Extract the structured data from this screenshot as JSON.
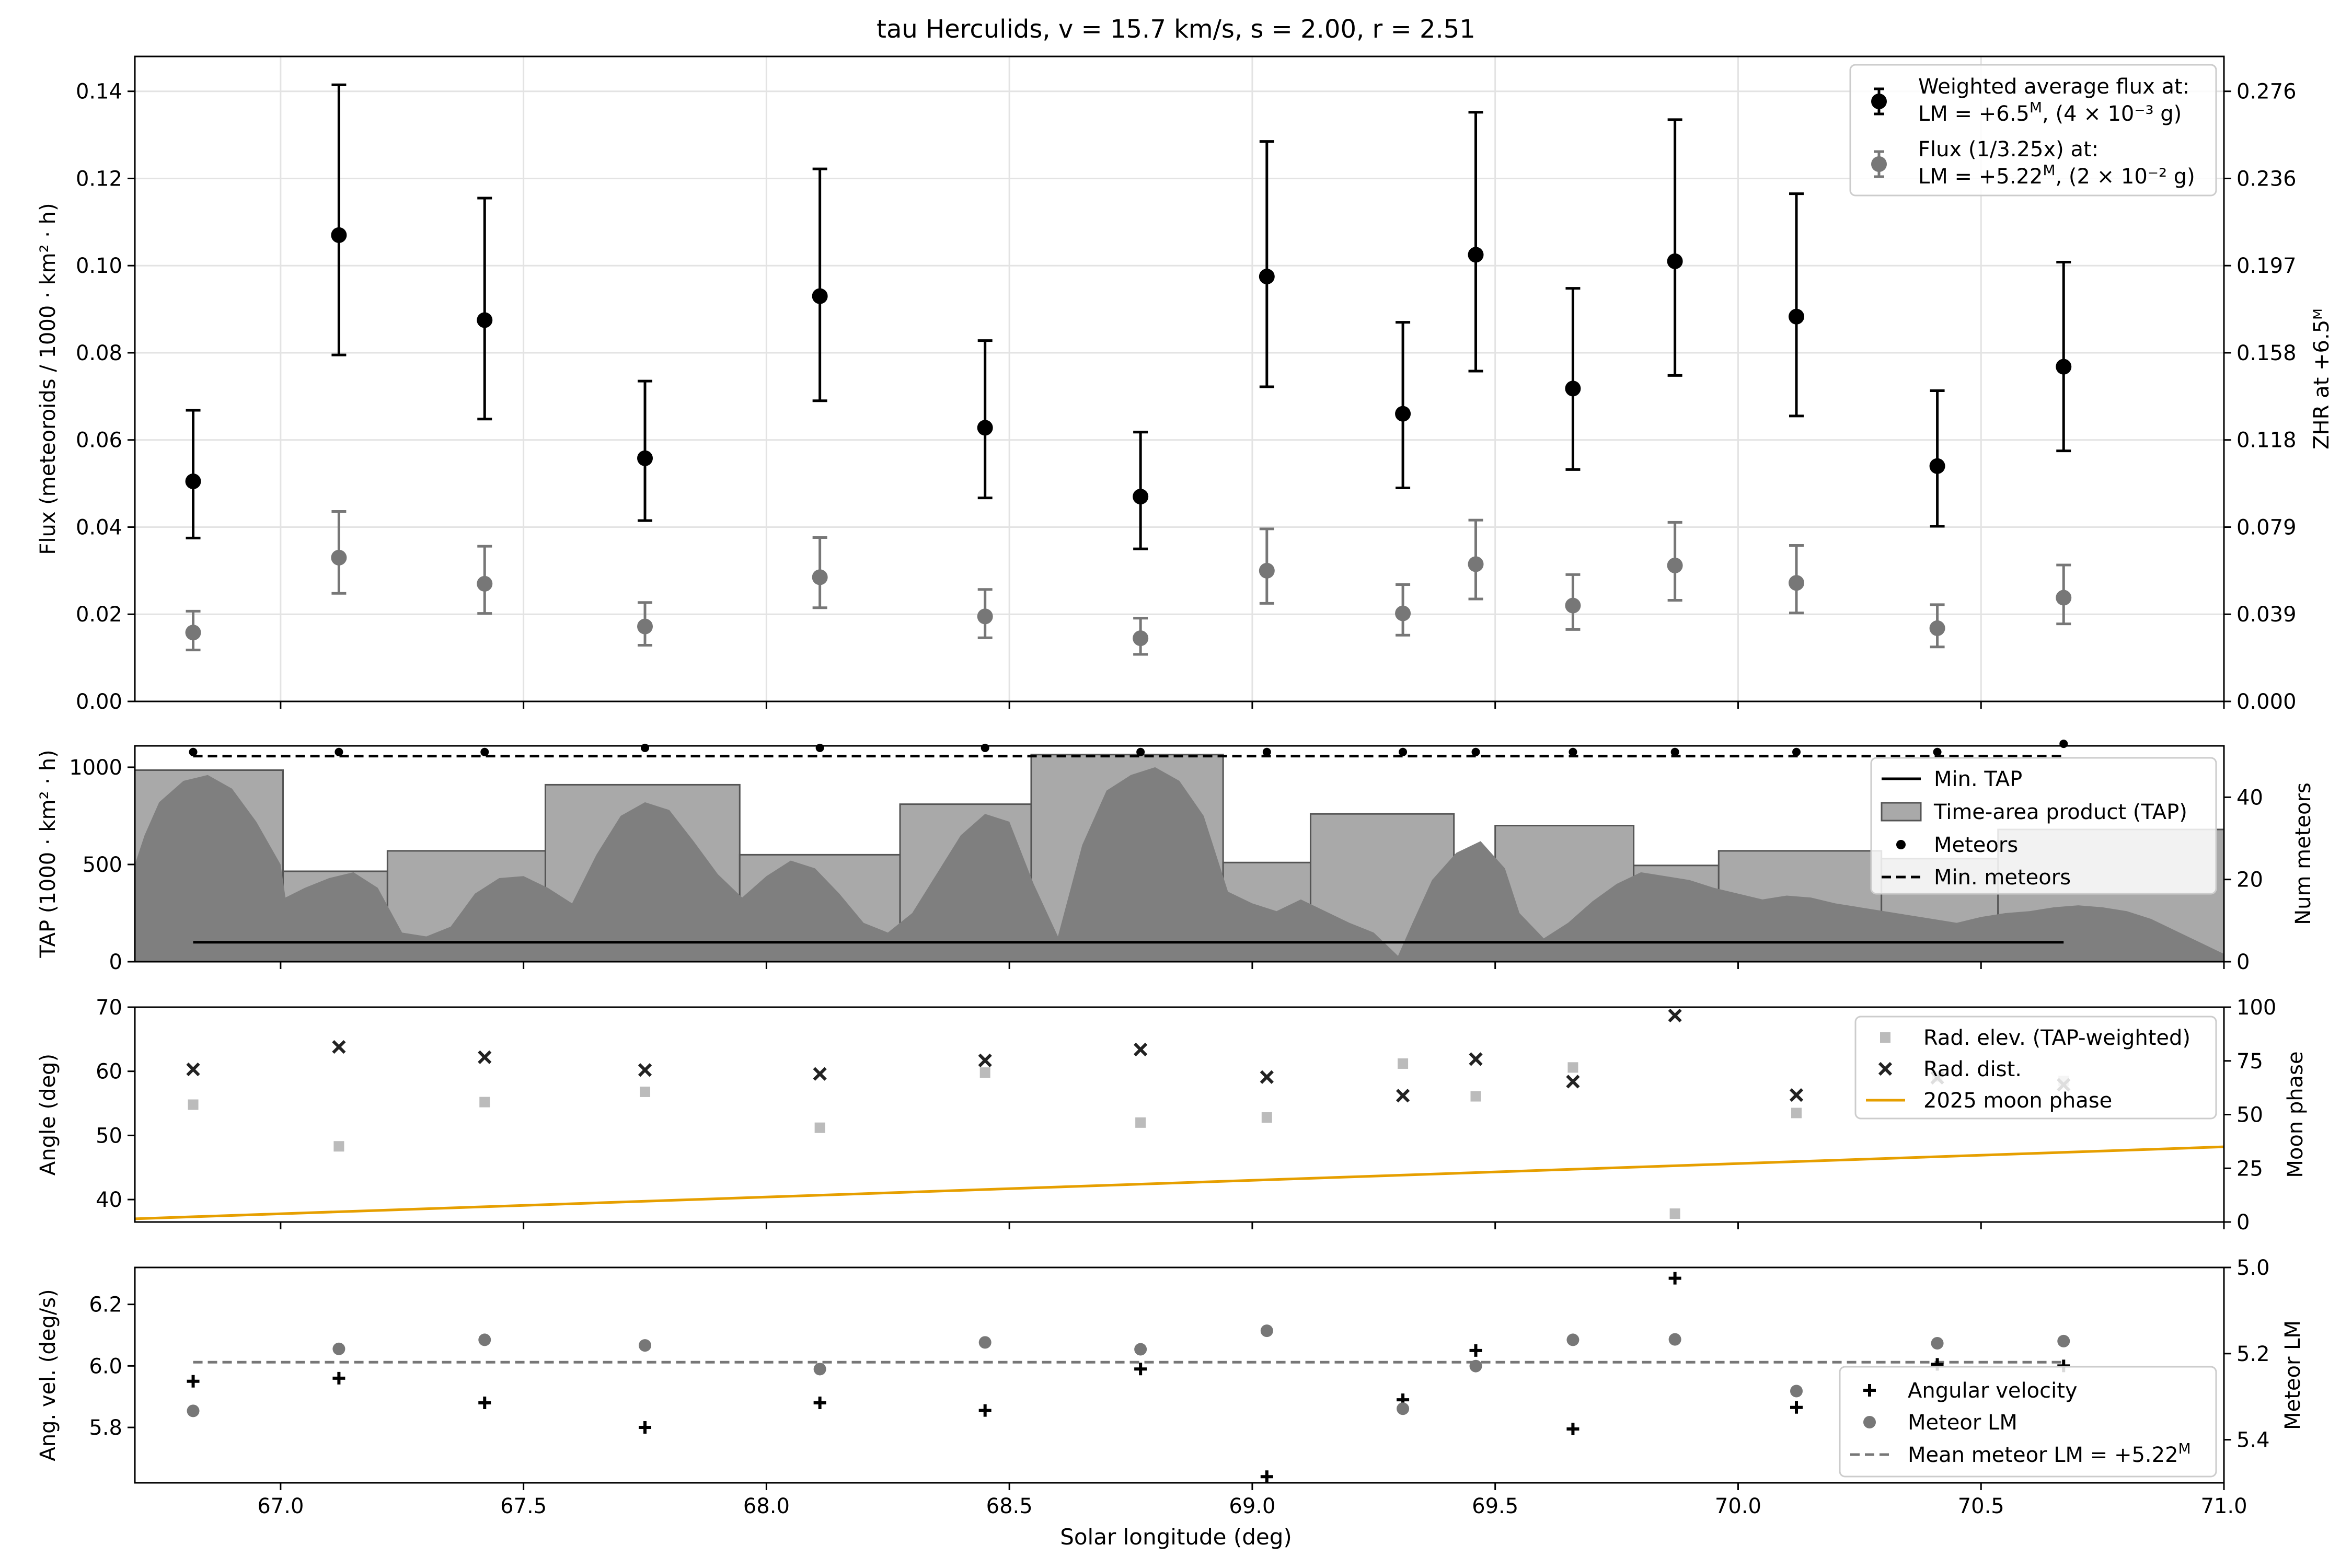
{
  "figure_title": "tau Herculids, v = 15.7 km/s, s = 2.00, r = 2.51",
  "x_axis": {
    "label": "Solar longitude (deg)",
    "range": [
      66.7,
      71.0
    ],
    "ticks": [
      67.0,
      67.5,
      68.0,
      68.5,
      69.0,
      69.5,
      70.0,
      70.5,
      71.0
    ],
    "tick_labels": [
      "67.0",
      "67.5",
      "68.0",
      "68.5",
      "69.0",
      "69.5",
      "70.0",
      "70.5",
      "71.0"
    ]
  },
  "chart_data": [
    {
      "type": "scatter",
      "panel": "flux",
      "ylabel": "Flux (meteoroids / 1000 · km² · h)",
      "ylim": [
        0,
        0.148
      ],
      "yticks": [
        0,
        0.02,
        0.04,
        0.06,
        0.08,
        0.1,
        0.12,
        0.14
      ],
      "ytick_labels": [
        "0.00",
        "0.02",
        "0.04",
        "0.06",
        "0.08",
        "0.10",
        "0.12",
        "0.14"
      ],
      "right_ylabel": "ZHR at +6.5ᴹ",
      "right_tick_labels": [
        "0.000",
        "0.039",
        "0.079",
        "0.118",
        "0.158",
        "0.197",
        "0.236",
        "0.276"
      ],
      "grid": true,
      "legend_position": "top-right",
      "series": [
        {
          "name": "Weighted average flux at:",
          "name_line2_prefix": "LM = +6.5",
          "name_line2_sup": "M",
          "name_line2_suffix": ", (4 × 10⁻³ g)",
          "color": "#000000",
          "x": [
            66.82,
            67.12,
            67.42,
            67.75,
            68.11,
            68.45,
            68.77,
            69.03,
            69.31,
            69.46,
            69.66,
            69.87,
            70.12,
            70.41,
            70.67
          ],
          "y": [
            0.0505,
            0.107,
            0.0875,
            0.0558,
            0.093,
            0.0628,
            0.047,
            0.0975,
            0.066,
            0.1025,
            0.0718,
            0.101,
            0.0883,
            0.054,
            0.0768
          ],
          "err_lo": [
            0.0375,
            0.0795,
            0.0648,
            0.0415,
            0.069,
            0.0467,
            0.035,
            0.0722,
            0.049,
            0.0758,
            0.0532,
            0.0748,
            0.0655,
            0.0402,
            0.0575
          ],
          "err_hi": [
            0.0668,
            0.1415,
            0.1155,
            0.0735,
            0.1222,
            0.0828,
            0.0618,
            0.1285,
            0.087,
            0.1352,
            0.0948,
            0.1335,
            0.1165,
            0.0713,
            0.1008
          ]
        },
        {
          "name": "Flux (1/3.25x) at:",
          "name_line2_prefix": "LM = +5.22",
          "name_line2_sup": "M",
          "name_line2_suffix": ", (2 × 10⁻² g)",
          "color": "#777777",
          "x": [
            66.82,
            67.12,
            67.42,
            67.75,
            68.11,
            68.45,
            68.77,
            69.03,
            69.31,
            69.46,
            69.66,
            69.87,
            70.12,
            70.41,
            70.67
          ],
          "y": [
            0.0158,
            0.033,
            0.027,
            0.0172,
            0.0285,
            0.0195,
            0.0145,
            0.03,
            0.0202,
            0.0315,
            0.022,
            0.0312,
            0.0272,
            0.0168,
            0.0238
          ],
          "err_lo": [
            0.0118,
            0.0248,
            0.0202,
            0.0129,
            0.0215,
            0.0146,
            0.0108,
            0.0225,
            0.0152,
            0.0235,
            0.0165,
            0.0232,
            0.0203,
            0.0125,
            0.0178
          ],
          "err_hi": [
            0.0207,
            0.0436,
            0.0356,
            0.0227,
            0.0376,
            0.0257,
            0.0191,
            0.0396,
            0.0268,
            0.0416,
            0.0291,
            0.0411,
            0.0358,
            0.0222,
            0.0313
          ]
        }
      ]
    },
    {
      "type": "bar",
      "panel": "tap",
      "ylabel": "TAP (1000 · km² · h)",
      "ylim": [
        0,
        1110
      ],
      "yticks": [
        0,
        500,
        1000
      ],
      "ytick_labels": [
        "0",
        "500",
        "1000"
      ],
      "right_ylabel": "Num meteors",
      "right_ylim": [
        0,
        52.5
      ],
      "right_yticks": [
        0,
        20,
        40
      ],
      "right_ytick_labels": [
        "0",
        "20",
        "40"
      ],
      "legend_position": "right",
      "legend": [
        "Min. TAP",
        "Time-area product (TAP)",
        "Meteors",
        "Min. meteors"
      ],
      "bins": [
        {
          "x0": 66.7,
          "x1": 67.005,
          "tap": 985
        },
        {
          "x0": 67.005,
          "x1": 67.22,
          "tap": 465
        },
        {
          "x0": 67.22,
          "x1": 67.545,
          "tap": 570
        },
        {
          "x0": 67.545,
          "x1": 67.945,
          "tap": 910
        },
        {
          "x0": 67.945,
          "x1": 68.275,
          "tap": 550
        },
        {
          "x0": 68.275,
          "x1": 68.545,
          "tap": 810
        },
        {
          "x0": 68.545,
          "x1": 68.94,
          "tap": 1065
        },
        {
          "x0": 68.94,
          "x1": 69.12,
          "tap": 510
        },
        {
          "x0": 69.12,
          "x1": 69.415,
          "tap": 760
        },
        {
          "x0": 69.415,
          "x1": 69.5,
          "tap": 490
        },
        {
          "x0": 69.5,
          "x1": 69.785,
          "tap": 700
        },
        {
          "x0": 69.785,
          "x1": 69.96,
          "tap": 495
        },
        {
          "x0": 69.96,
          "x1": 70.295,
          "tap": 570
        },
        {
          "x0": 70.295,
          "x1": 70.535,
          "tap": 530
        },
        {
          "x0": 70.535,
          "x1": 71.0,
          "tap": 680
        }
      ],
      "instantaneous_tap": {
        "x": [
          66.7,
          66.72,
          66.75,
          66.8,
          66.85,
          66.9,
          66.95,
          67.0,
          67.01,
          67.05,
          67.1,
          67.15,
          67.2,
          67.25,
          67.3,
          67.35,
          67.4,
          67.45,
          67.5,
          67.55,
          67.6,
          67.65,
          67.7,
          67.75,
          67.8,
          67.85,
          67.9,
          67.95,
          68.0,
          68.05,
          68.1,
          68.15,
          68.2,
          68.25,
          68.3,
          68.35,
          68.4,
          68.45,
          68.5,
          68.55,
          68.6,
          68.65,
          68.7,
          68.75,
          68.8,
          68.85,
          68.9,
          68.95,
          69.0,
          69.05,
          69.1,
          69.15,
          69.2,
          69.25,
          69.3,
          69.33,
          69.37,
          69.42,
          69.47,
          69.52,
          69.55,
          69.6,
          69.65,
          69.7,
          69.75,
          69.8,
          69.85,
          69.9,
          69.95,
          70.0,
          70.05,
          70.1,
          70.15,
          70.2,
          70.25,
          70.3,
          70.35,
          70.4,
          70.45,
          70.5,
          70.55,
          70.6,
          70.65,
          70.7,
          70.75,
          70.8,
          70.85,
          70.9,
          70.95,
          71.0
        ],
        "y": [
          500,
          650,
          820,
          930,
          960,
          890,
          720,
          500,
          330,
          380,
          430,
          460,
          380,
          150,
          130,
          180,
          350,
          430,
          440,
          380,
          300,
          550,
          750,
          820,
          780,
          620,
          450,
          330,
          440,
          520,
          480,
          350,
          200,
          150,
          250,
          450,
          650,
          760,
          720,
          400,
          130,
          600,
          880,
          960,
          1000,
          930,
          750,
          360,
          300,
          260,
          320,
          260,
          200,
          150,
          30,
          200,
          420,
          560,
          620,
          480,
          250,
          120,
          200,
          310,
          400,
          460,
          440,
          420,
          380,
          350,
          320,
          340,
          330,
          300,
          280,
          260,
          240,
          220,
          200,
          230,
          250,
          260,
          280,
          290,
          280,
          260,
          220,
          160,
          100,
          40
        ]
      },
      "meteors": {
        "x": [
          66.82,
          67.12,
          67.42,
          67.75,
          68.11,
          68.45,
          68.77,
          69.03,
          69.31,
          69.46,
          69.66,
          69.87,
          70.12,
          70.41,
          70.67
        ],
        "y": [
          51,
          51,
          51,
          52,
          52,
          52,
          51,
          51,
          51,
          51,
          51,
          51,
          51,
          51,
          53
        ]
      },
      "min_meteors": 50,
      "min_tap": {
        "value": 100,
        "x_range": [
          66.82,
          70.67
        ]
      }
    },
    {
      "type": "scatter",
      "panel": "angle",
      "ylabel": "Angle (deg)",
      "ylim": [
        36.5,
        70
      ],
      "yticks": [
        40,
        50,
        60,
        70
      ],
      "ytick_labels": [
        "40",
        "50",
        "60",
        "70"
      ],
      "right_ylabel": "Moon phase",
      "right_ylim": [
        0,
        100
      ],
      "right_yticks": [
        0,
        25,
        50,
        75,
        100
      ],
      "right_ytick_labels": [
        "0",
        "25",
        "50",
        "75",
        "100"
      ],
      "legend_position": "top-right",
      "series": [
        {
          "name": "Rad. elev. (TAP-weighted)",
          "color": "#bbbbbb",
          "x": [
            66.82,
            67.12,
            67.42,
            67.75,
            68.11,
            68.45,
            68.77,
            69.03,
            69.31,
            69.46,
            69.66,
            69.87,
            70.12,
            70.41,
            70.67
          ],
          "y": [
            54.8,
            48.3,
            55.2,
            56.8,
            51.2,
            59.8,
            52.0,
            52.8,
            61.2,
            56.1,
            60.6,
            37.8,
            53.5,
            59.2,
            58.5
          ]
        },
        {
          "name": "Rad. dist.",
          "color": "#222222",
          "x": [
            66.82,
            67.12,
            67.42,
            67.75,
            68.11,
            68.45,
            68.77,
            69.03,
            69.31,
            69.46,
            69.66,
            69.87,
            70.12,
            70.41,
            70.67
          ],
          "y": [
            60.3,
            63.8,
            62.2,
            60.2,
            59.6,
            61.7,
            63.4,
            59.1,
            56.2,
            61.9,
            58.4,
            68.7,
            56.3,
            59.0,
            57.9
          ]
        },
        {
          "name": "2025 moon phase",
          "color": "#e69f00",
          "axis": "right",
          "x": [
            66.7,
            71.0
          ],
          "y": [
            1.5,
            35
          ]
        }
      ]
    },
    {
      "type": "scatter",
      "panel": "angvel",
      "ylabel": "Ang. vel. (deg/s)",
      "ylim": [
        5.62,
        6.32
      ],
      "yticks": [
        5.8,
        6.0,
        6.2
      ],
      "ytick_labels": [
        "5.8",
        "6.0",
        "6.2"
      ],
      "right_ylabel": "Meteor LM",
      "right_ylim_inverted": [
        5.0,
        5.5
      ],
      "right_yticks": [
        5.0,
        5.2,
        5.4
      ],
      "right_ytick_labels": [
        "5.0",
        "5.2",
        "5.4"
      ],
      "legend_position": "bottom-right",
      "series": [
        {
          "name": "Angular velocity",
          "color": "#000000",
          "x": [
            66.82,
            67.12,
            67.42,
            67.75,
            68.11,
            68.45,
            68.77,
            69.03,
            69.31,
            69.46,
            69.66,
            69.87,
            70.12,
            70.41,
            70.67
          ],
          "y": [
            5.95,
            5.96,
            5.88,
            5.8,
            5.88,
            5.855,
            5.99,
            5.64,
            5.89,
            6.05,
            5.795,
            6.285,
            5.865,
            6.005,
            6.0
          ]
        },
        {
          "name": "Meteor LM",
          "color": "#777777",
          "axis": "right",
          "x": [
            66.82,
            67.12,
            67.42,
            67.75,
            68.11,
            68.45,
            68.77,
            69.03,
            69.31,
            69.46,
            69.66,
            69.87,
            70.12,
            70.41,
            70.67
          ],
          "y": [
            5.333,
            5.189,
            5.168,
            5.181,
            5.236,
            5.174,
            5.19,
            5.147,
            5.328,
            5.229,
            5.168,
            5.167,
            5.287,
            5.176,
            5.171
          ]
        },
        {
          "name_prefix": "Mean meteor LM = +5.22",
          "name_sup": "M",
          "color": "#777777",
          "axis": "right",
          "dashed": true,
          "x": [
            66.82,
            70.67
          ],
          "y": [
            5.22,
            5.22
          ]
        }
      ]
    }
  ]
}
